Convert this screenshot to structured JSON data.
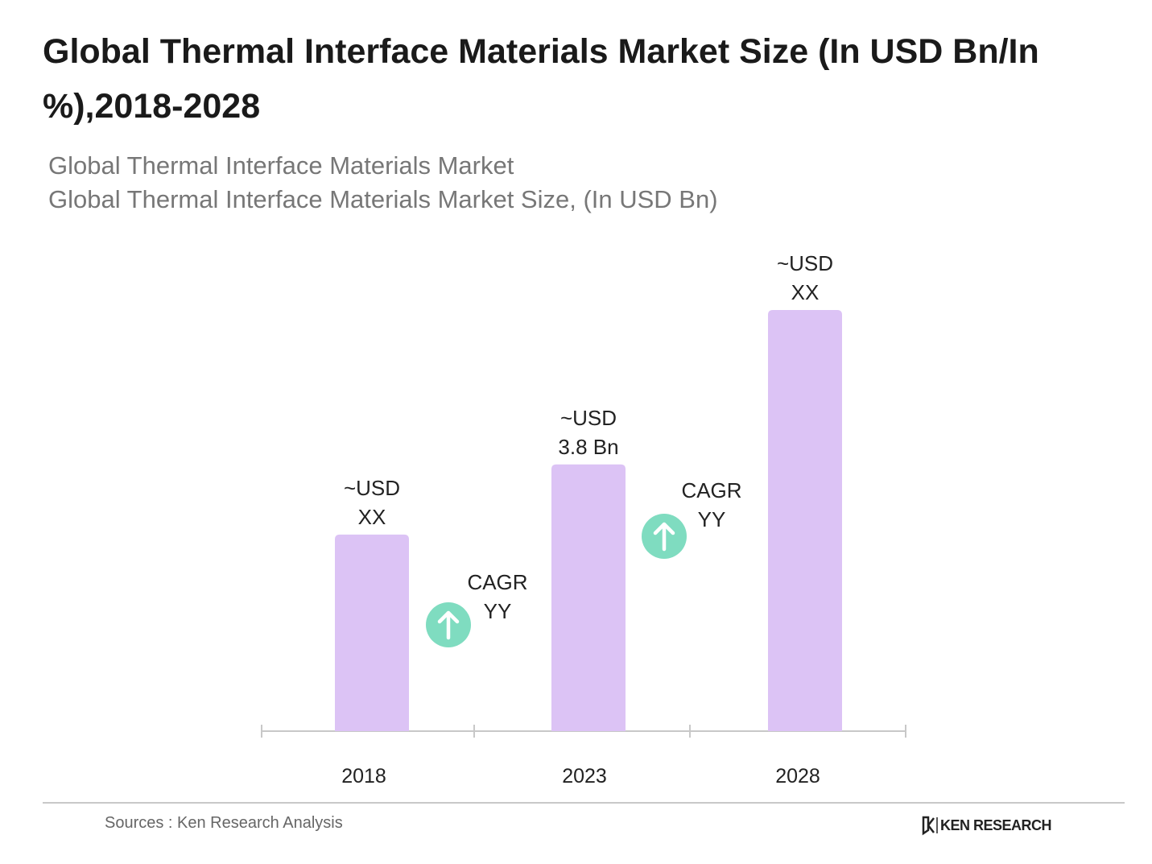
{
  "chart_data": {
    "type": "bar",
    "title": "Global Thermal Interface Materials Market Size (In USD Bn/In %),2018-2028",
    "subtitle": [
      "Global Thermal Interface Materials Market",
      "Global Thermal Interface Materials Market Size, (In USD Bn)"
    ],
    "categories": [
      "2018",
      "2023",
      "2028"
    ],
    "values": [
      2.8,
      3.8,
      6.0
    ],
    "value_labels": [
      "~USD\nXX",
      "~USD\n3.8 Bn",
      "~USD\nXX"
    ],
    "color": "#dcc3f5",
    "annotations": [
      "CAGR\nYY",
      "CAGR\nYY"
    ],
    "source": "Sources : Ken Research Analysis",
    "logo": "KEN RESEARCH"
  }
}
